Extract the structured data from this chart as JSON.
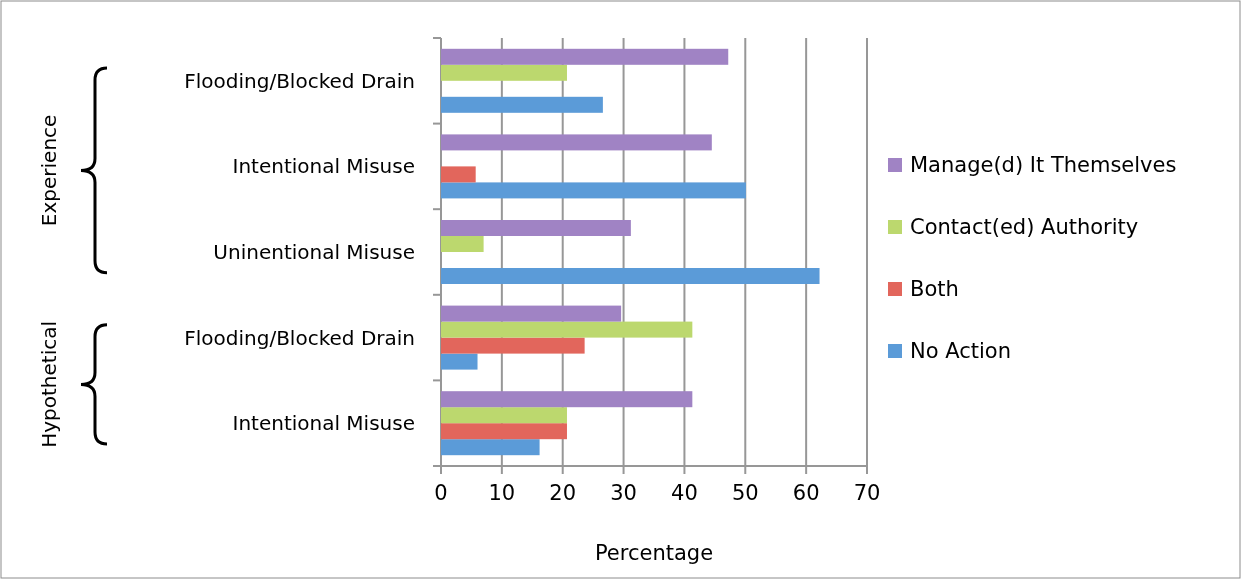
{
  "chart_data": {
    "type": "bar",
    "orientation": "horizontal",
    "xlabel": "Percentage",
    "categories": [
      "Flooding/Blocked Drain",
      "Intentional Misuse",
      "Uninentional Misuse",
      "Flooding/Blocked Drain",
      "Intentional Misuse"
    ],
    "series": [
      {
        "name": "No Action",
        "color": "#5b9bd8",
        "values": [
          26.6,
          50.1,
          62.2,
          6.0,
          16.2
        ]
      },
      {
        "name": "Both",
        "color": "#e2665c",
        "values": [
          0,
          5.7,
          0,
          23.6,
          20.7
        ]
      },
      {
        "name": "Contact(ed) Authority",
        "color": "#bcd86e",
        "values": [
          20.7,
          0,
          7.0,
          41.3,
          20.7
        ]
      },
      {
        "name": "Manage(d) It Themselves",
        "color": "#a083c4",
        "values": [
          47.2,
          44.5,
          31.2,
          29.6,
          41.3
        ]
      }
    ],
    "xlim": [
      0,
      70
    ],
    "xticks": [
      0,
      10,
      20,
      30,
      40,
      50,
      60,
      70
    ],
    "grid": "x",
    "legend": "right",
    "annotations": [
      "Experience",
      "Hypothetical"
    ]
  }
}
